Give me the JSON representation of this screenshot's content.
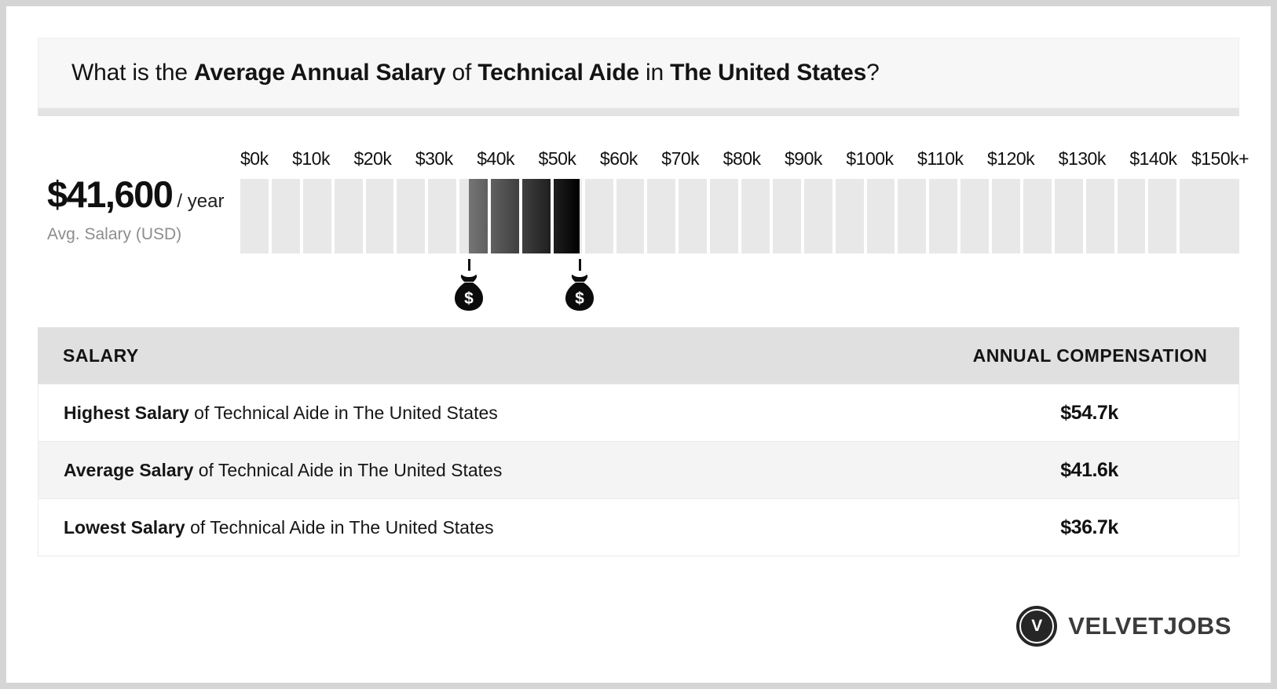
{
  "colors": {
    "page_background": "#d5d5d5",
    "card_background": "#ffffff",
    "banner_background": "#f7f7f7",
    "banner_shadow": "#e3e3e3",
    "scale_cell": "#e8e8e8",
    "table_header_background": "#e0e0e0",
    "table_alt_row_background": "#f4f4f4",
    "text": "#141414",
    "muted_text": "#8d8d8d",
    "highlight_gradient_start": "#757575",
    "highlight_gradient_end": "#000000"
  },
  "banner": {
    "question_segments": [
      {
        "text": "What is the ",
        "bold": false
      },
      {
        "text": "Average Annual Salary",
        "bold": true
      },
      {
        "text": " of ",
        "bold": false
      },
      {
        "text": "Technical Aide",
        "bold": true
      },
      {
        "text": " in ",
        "bold": false
      },
      {
        "text": "The United States",
        "bold": true
      },
      {
        "text": "?",
        "bold": false
      }
    ]
  },
  "summary": {
    "amount": "$41,600",
    "per": "/ year",
    "caption": "Avg. Salary (USD)"
  },
  "chart_data": {
    "type": "range_scale",
    "title": "Salary range of Technical Aide in The United States",
    "axis": {
      "min": 0,
      "max": 155000,
      "segment_size": 5000,
      "tick_step": 10000,
      "tick_labels": [
        "$0k",
        "$10k",
        "$20k",
        "$30k",
        "$40k",
        "$50k",
        "$60k",
        "$70k",
        "$80k",
        "$90k",
        "$100k",
        "$110k",
        "$120k",
        "$130k",
        "$140k",
        "$150k+"
      ]
    },
    "values": {
      "lowest": 36700,
      "average": 41600,
      "highest": 54700
    },
    "value_labels": {
      "lowest": "$36.7k",
      "average": "$41.6k",
      "highest": "$54.7k"
    },
    "highlight_range": [
      36700,
      54700
    ],
    "gradient": [
      "#757575",
      "#000000"
    ],
    "markers": [
      {
        "name": "lowest-salary-marker",
        "value": 36700
      },
      {
        "name": "highest-salary-marker",
        "value": 54700
      }
    ],
    "legend": "none",
    "grid": false
  },
  "table": {
    "headers": [
      "SALARY",
      "ANNUAL COMPENSATION"
    ],
    "rows": [
      {
        "bold": "Highest Salary",
        "rest": " of Technical Aide in The United States",
        "value": "$54.7k"
      },
      {
        "bold": "Average Salary",
        "rest": " of Technical Aide in The United States",
        "value": "$41.6k"
      },
      {
        "bold": "Lowest Salary",
        "rest": " of Technical Aide in The United States",
        "value": "$36.7k"
      }
    ]
  },
  "footer": {
    "brand": "VELVETJOBS",
    "monogram": "V"
  }
}
